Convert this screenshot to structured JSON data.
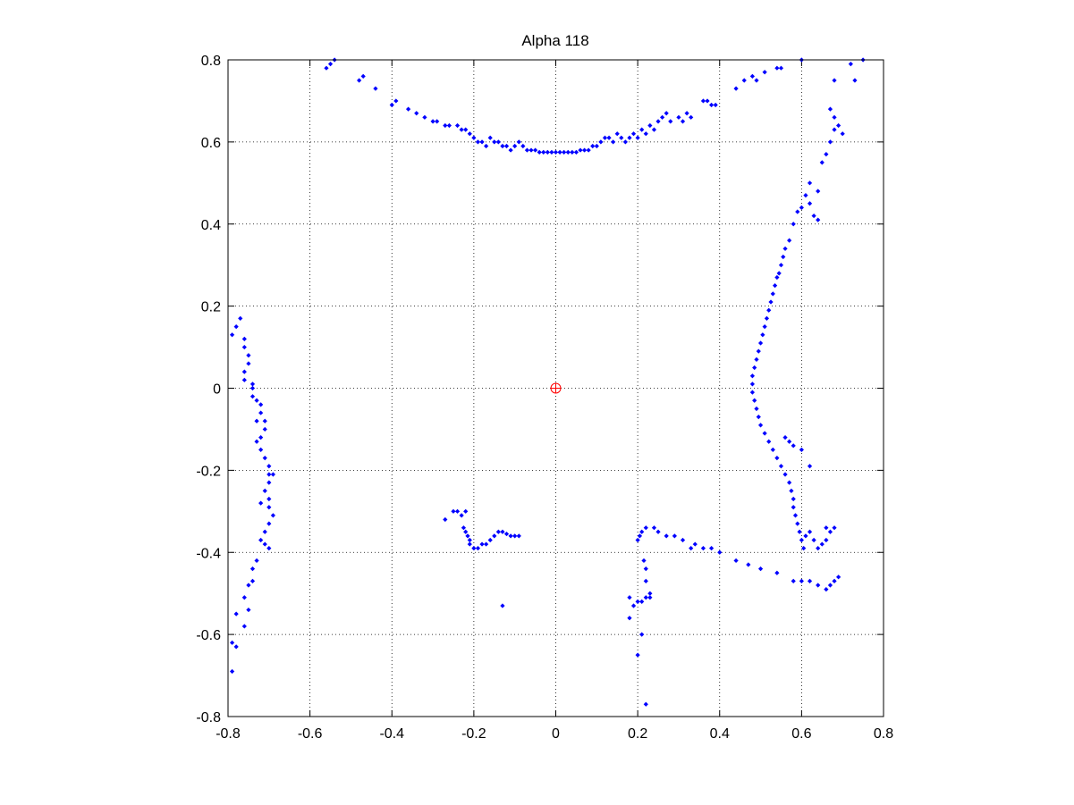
{
  "chart_data": {
    "type": "scatter",
    "title": "Alpha 118",
    "xlabel": "",
    "ylabel": "",
    "xlim": [
      -0.8,
      0.8
    ],
    "ylim": [
      -0.8,
      0.8
    ],
    "xticks": [
      "-0.8",
      "-0.6",
      "-0.4",
      "-0.2",
      "0",
      "0.2",
      "0.4",
      "0.6",
      "0.8"
    ],
    "yticks": [
      "0.8",
      "0.6",
      "0.4",
      "0.2",
      "0",
      "-0.2",
      "-0.4",
      "-0.6",
      "-0.8"
    ],
    "grid": true,
    "colors": {
      "points": "#0000ff",
      "origin": "#ff0000"
    },
    "origin_marker": {
      "x": 0,
      "y": 0,
      "shape": "circle-plus"
    },
    "series": [
      {
        "marker": "dot",
        "points": [
          [
            -0.56,
            0.78
          ],
          [
            -0.55,
            0.79
          ],
          [
            -0.54,
            0.8
          ],
          [
            -0.48,
            0.75
          ],
          [
            -0.47,
            0.76
          ],
          [
            -0.44,
            0.73
          ],
          [
            -0.4,
            0.69
          ],
          [
            -0.39,
            0.7
          ],
          [
            -0.36,
            0.68
          ],
          [
            -0.34,
            0.67
          ],
          [
            -0.32,
            0.66
          ],
          [
            -0.3,
            0.65
          ],
          [
            -0.29,
            0.65
          ],
          [
            -0.27,
            0.64
          ],
          [
            -0.26,
            0.64
          ],
          [
            -0.24,
            0.64
          ],
          [
            -0.23,
            0.63
          ],
          [
            -0.22,
            0.63
          ],
          [
            -0.21,
            0.62
          ],
          [
            -0.2,
            0.61
          ],
          [
            -0.19,
            0.6
          ],
          [
            -0.18,
            0.6
          ],
          [
            -0.17,
            0.59
          ],
          [
            -0.16,
            0.61
          ],
          [
            -0.15,
            0.6
          ],
          [
            -0.14,
            0.6
          ],
          [
            -0.13,
            0.59
          ],
          [
            -0.12,
            0.59
          ],
          [
            -0.11,
            0.58
          ],
          [
            -0.1,
            0.59
          ],
          [
            -0.09,
            0.6
          ],
          [
            -0.08,
            0.59
          ],
          [
            -0.07,
            0.58
          ],
          [
            -0.06,
            0.58
          ],
          [
            -0.05,
            0.58
          ],
          [
            -0.04,
            0.575
          ],
          [
            -0.03,
            0.575
          ],
          [
            -0.02,
            0.575
          ],
          [
            -0.01,
            0.575
          ],
          [
            0.0,
            0.575
          ],
          [
            0.01,
            0.575
          ],
          [
            0.02,
            0.575
          ],
          [
            0.03,
            0.575
          ],
          [
            0.04,
            0.575
          ],
          [
            0.05,
            0.575
          ],
          [
            0.06,
            0.58
          ],
          [
            0.07,
            0.58
          ],
          [
            0.08,
            0.58
          ],
          [
            0.09,
            0.59
          ],
          [
            0.1,
            0.59
          ],
          [
            0.11,
            0.6
          ],
          [
            0.12,
            0.61
          ],
          [
            0.13,
            0.61
          ],
          [
            0.14,
            0.6
          ],
          [
            0.15,
            0.62
          ],
          [
            0.16,
            0.61
          ],
          [
            0.17,
            0.6
          ],
          [
            0.18,
            0.61
          ],
          [
            0.19,
            0.62
          ],
          [
            0.2,
            0.61
          ],
          [
            0.21,
            0.63
          ],
          [
            0.22,
            0.62
          ],
          [
            0.23,
            0.64
          ],
          [
            0.24,
            0.63
          ],
          [
            0.25,
            0.65
          ],
          [
            0.26,
            0.66
          ],
          [
            0.27,
            0.67
          ],
          [
            0.28,
            0.65
          ],
          [
            0.3,
            0.66
          ],
          [
            0.31,
            0.65
          ],
          [
            0.32,
            0.67
          ],
          [
            0.33,
            0.66
          ],
          [
            0.36,
            0.7
          ],
          [
            0.37,
            0.7
          ],
          [
            0.38,
            0.69
          ],
          [
            0.39,
            0.69
          ],
          [
            0.44,
            0.73
          ],
          [
            0.46,
            0.75
          ],
          [
            0.48,
            0.76
          ],
          [
            0.49,
            0.75
          ],
          [
            0.51,
            0.77
          ],
          [
            0.54,
            0.78
          ],
          [
            0.55,
            0.78
          ],
          [
            0.6,
            0.8
          ],
          [
            0.68,
            0.75
          ],
          [
            0.72,
            0.79
          ],
          [
            0.75,
            0.8
          ],
          [
            0.64,
            0.48
          ],
          [
            0.65,
            0.55
          ],
          [
            0.66,
            0.57
          ],
          [
            0.67,
            0.6
          ],
          [
            0.68,
            0.63
          ],
          [
            0.67,
            0.68
          ],
          [
            0.68,
            0.66
          ],
          [
            0.7,
            0.62
          ],
          [
            0.69,
            0.64
          ],
          [
            0.73,
            0.75
          ],
          [
            0.58,
            0.4
          ],
          [
            0.59,
            0.43
          ],
          [
            0.6,
            0.44
          ],
          [
            0.61,
            0.47
          ],
          [
            0.62,
            0.45
          ],
          [
            0.63,
            0.42
          ],
          [
            0.64,
            0.41
          ],
          [
            0.62,
            0.5
          ],
          [
            0.57,
            0.36
          ],
          [
            0.56,
            0.34
          ],
          [
            0.555,
            0.32
          ],
          [
            0.55,
            0.3
          ],
          [
            0.545,
            0.28
          ],
          [
            0.54,
            0.27
          ],
          [
            0.535,
            0.25
          ],
          [
            0.53,
            0.23
          ],
          [
            0.525,
            0.21
          ],
          [
            0.52,
            0.19
          ],
          [
            0.515,
            0.17
          ],
          [
            0.51,
            0.15
          ],
          [
            0.505,
            0.13
          ],
          [
            0.5,
            0.11
          ],
          [
            0.495,
            0.09
          ],
          [
            0.49,
            0.07
          ],
          [
            0.485,
            0.05
          ],
          [
            0.48,
            0.03
          ],
          [
            0.48,
            0.01
          ],
          [
            0.48,
            -0.01
          ],
          [
            0.485,
            -0.03
          ],
          [
            0.49,
            -0.05
          ],
          [
            0.495,
            -0.07
          ],
          [
            0.5,
            -0.09
          ],
          [
            0.51,
            -0.11
          ],
          [
            0.52,
            -0.13
          ],
          [
            0.53,
            -0.15
          ],
          [
            0.54,
            -0.17
          ],
          [
            0.55,
            -0.19
          ],
          [
            0.56,
            -0.21
          ],
          [
            0.57,
            -0.23
          ],
          [
            0.575,
            -0.25
          ],
          [
            0.58,
            -0.27
          ],
          [
            0.58,
            -0.29
          ],
          [
            0.585,
            -0.31
          ],
          [
            0.59,
            -0.33
          ],
          [
            0.595,
            -0.35
          ],
          [
            0.6,
            -0.37
          ],
          [
            0.605,
            -0.39
          ],
          [
            0.61,
            -0.36
          ],
          [
            0.62,
            -0.19
          ],
          [
            0.6,
            -0.15
          ],
          [
            0.58,
            -0.14
          ],
          [
            0.57,
            -0.13
          ],
          [
            0.56,
            -0.12
          ],
          [
            0.62,
            -0.35
          ],
          [
            0.63,
            -0.37
          ],
          [
            0.64,
            -0.39
          ],
          [
            0.65,
            -0.38
          ],
          [
            0.66,
            -0.37
          ],
          [
            0.67,
            -0.35
          ],
          [
            0.68,
            -0.34
          ],
          [
            0.66,
            -0.34
          ],
          [
            0.69,
            -0.46
          ],
          [
            0.68,
            -0.47
          ],
          [
            0.67,
            -0.48
          ],
          [
            0.66,
            -0.49
          ],
          [
            0.64,
            -0.48
          ],
          [
            0.62,
            -0.47
          ],
          [
            0.6,
            -0.47
          ],
          [
            0.58,
            -0.47
          ],
          [
            0.54,
            -0.45
          ],
          [
            0.5,
            -0.44
          ],
          [
            0.47,
            -0.43
          ],
          [
            0.44,
            -0.42
          ],
          [
            0.4,
            -0.4
          ],
          [
            0.38,
            -0.39
          ],
          [
            0.36,
            -0.39
          ],
          [
            0.34,
            -0.38
          ],
          [
            0.33,
            -0.39
          ],
          [
            0.31,
            -0.37
          ],
          [
            0.29,
            -0.36
          ],
          [
            0.27,
            -0.36
          ],
          [
            0.25,
            -0.35
          ],
          [
            0.24,
            -0.34
          ],
          [
            0.22,
            -0.34
          ],
          [
            0.21,
            -0.35
          ],
          [
            0.205,
            -0.36
          ],
          [
            0.2,
            -0.37
          ],
          [
            0.215,
            -0.42
          ],
          [
            0.22,
            -0.44
          ],
          [
            0.22,
            -0.47
          ],
          [
            0.23,
            -0.5
          ],
          [
            0.23,
            -0.51
          ],
          [
            0.22,
            -0.51
          ],
          [
            0.21,
            -0.52
          ],
          [
            0.2,
            -0.52
          ],
          [
            0.19,
            -0.53
          ],
          [
            0.18,
            -0.51
          ],
          [
            0.18,
            -0.56
          ],
          [
            0.2,
            -0.65
          ],
          [
            0.21,
            -0.6
          ],
          [
            0.22,
            -0.77
          ],
          [
            -0.27,
            -0.32
          ],
          [
            -0.25,
            -0.3
          ],
          [
            -0.24,
            -0.3
          ],
          [
            -0.23,
            -0.31
          ],
          [
            -0.22,
            -0.3
          ],
          [
            -0.225,
            -0.34
          ],
          [
            -0.22,
            -0.35
          ],
          [
            -0.215,
            -0.36
          ],
          [
            -0.21,
            -0.37
          ],
          [
            -0.21,
            -0.38
          ],
          [
            -0.2,
            -0.39
          ],
          [
            -0.19,
            -0.39
          ],
          [
            -0.18,
            -0.38
          ],
          [
            -0.17,
            -0.38
          ],
          [
            -0.16,
            -0.37
          ],
          [
            -0.15,
            -0.36
          ],
          [
            -0.14,
            -0.35
          ],
          [
            -0.13,
            -0.35
          ],
          [
            -0.12,
            -0.355
          ],
          [
            -0.11,
            -0.36
          ],
          [
            -0.1,
            -0.36
          ],
          [
            -0.09,
            -0.36
          ],
          [
            -0.13,
            -0.53
          ],
          [
            -0.78,
            0.15
          ],
          [
            -0.77,
            0.17
          ],
          [
            -0.76,
            0.12
          ],
          [
            -0.76,
            0.1
          ],
          [
            -0.75,
            0.08
          ],
          [
            -0.75,
            0.06
          ],
          [
            -0.76,
            0.04
          ],
          [
            -0.76,
            0.02
          ],
          [
            -0.74,
            0.0
          ],
          [
            -0.74,
            -0.02
          ],
          [
            -0.73,
            -0.03
          ],
          [
            -0.72,
            -0.04
          ],
          [
            -0.72,
            -0.06
          ],
          [
            -0.71,
            -0.08
          ],
          [
            -0.71,
            -0.1
          ],
          [
            -0.72,
            -0.12
          ],
          [
            -0.73,
            -0.13
          ],
          [
            -0.72,
            -0.15
          ],
          [
            -0.71,
            -0.17
          ],
          [
            -0.7,
            -0.19
          ],
          [
            -0.7,
            -0.21
          ],
          [
            -0.69,
            -0.21
          ],
          [
            -0.7,
            -0.23
          ],
          [
            -0.71,
            -0.25
          ],
          [
            -0.7,
            -0.27
          ],
          [
            -0.7,
            -0.29
          ],
          [
            -0.69,
            -0.31
          ],
          [
            -0.7,
            -0.33
          ],
          [
            -0.71,
            -0.35
          ],
          [
            -0.72,
            -0.37
          ],
          [
            -0.71,
            -0.38
          ],
          [
            -0.7,
            -0.39
          ],
          [
            -0.73,
            -0.42
          ],
          [
            -0.74,
            -0.44
          ],
          [
            -0.74,
            -0.47
          ],
          [
            -0.75,
            -0.48
          ],
          [
            -0.76,
            -0.51
          ],
          [
            -0.75,
            -0.54
          ],
          [
            -0.76,
            -0.58
          ],
          [
            -0.78,
            -0.55
          ],
          [
            -0.79,
            -0.62
          ],
          [
            -0.78,
            -0.63
          ],
          [
            -0.79,
            -0.69
          ],
          [
            -0.73,
            -0.08
          ],
          [
            -0.72,
            -0.28
          ],
          [
            -0.79,
            0.13
          ],
          [
            -0.74,
            0.01
          ]
        ]
      }
    ]
  }
}
